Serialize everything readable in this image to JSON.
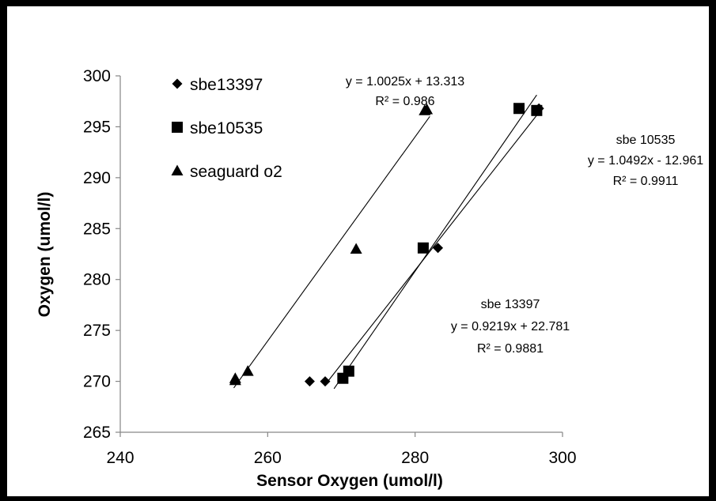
{
  "chart_data": {
    "type": "scatter",
    "title": "",
    "xlabel": "Sensor  Oxygen (umol/l)",
    "ylabel": "Oxygen (umol/l)",
    "xlim": [
      240,
      300
    ],
    "ylim": [
      265,
      300
    ],
    "x_ticks": [
      "240",
      "260",
      "280",
      "300"
    ],
    "y_ticks": [
      "265",
      "270",
      "275",
      "280",
      "285",
      "290",
      "295",
      "300"
    ],
    "grid": false,
    "legend_position": "top-left",
    "series": [
      {
        "name": "sbe13397",
        "marker": "diamond",
        "color": "#000000",
        "points": [
          [
            265.7,
            270.0
          ],
          [
            267.8,
            270.0
          ],
          [
            283.1,
            283.1
          ],
          [
            296.8,
            296.8
          ]
        ],
        "trendline": {
          "slope": 0.9219,
          "intercept": 22.781,
          "x_range": [
            268.2,
            297.0
          ]
        },
        "annotation": [
          "sbe 13397",
          "y = 0.9219x + 22.781",
          "R² = 0.9881"
        ]
      },
      {
        "name": "sbe10535",
        "marker": "square",
        "color": "#000000",
        "points": [
          [
            270.2,
            270.3
          ],
          [
            271.0,
            271.0
          ],
          [
            281.1,
            283.1
          ],
          [
            294.1,
            296.8
          ],
          [
            296.5,
            296.6
          ]
        ],
        "trendline": {
          "slope": 1.0492,
          "intercept": -12.961,
          "x_range": [
            269.0,
            296.5
          ]
        },
        "annotation": [
          "sbe 10535",
          "y = 1.0492x - 12.961",
          "R² = 0.9911"
        ]
      },
      {
        "name": "seaguard o2",
        "marker": "triangle",
        "color": "#000000",
        "points": [
          [
            255.6,
            270.1
          ],
          [
            255.6,
            270.3
          ],
          [
            257.3,
            271.0
          ],
          [
            272.0,
            283.0
          ],
          [
            281.6,
            296.7
          ],
          [
            281.3,
            296.6
          ]
        ],
        "trendline": {
          "slope": 1.0025,
          "intercept": 13.313,
          "x_range": [
            255.4,
            282.0
          ]
        },
        "annotation": [
          "y = 1.0025x + 13.313",
          "R² = 0.986"
        ]
      }
    ]
  }
}
